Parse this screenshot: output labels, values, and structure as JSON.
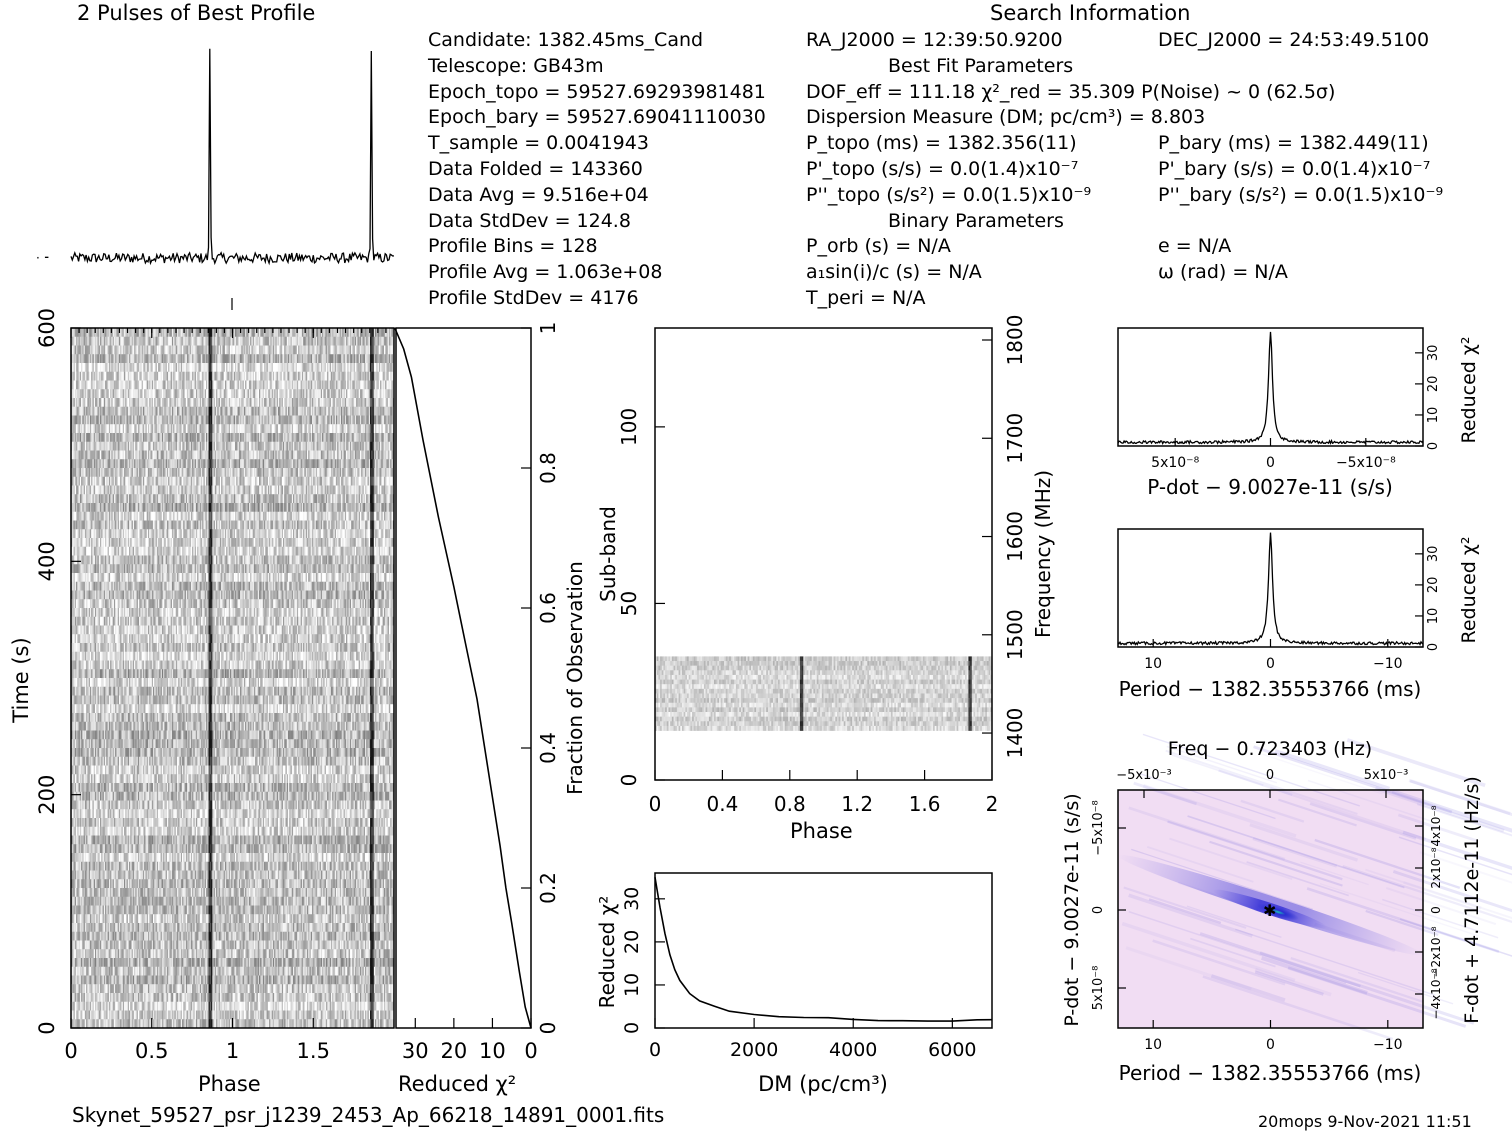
{
  "header": {
    "profile_title": "2 Pulses of Best Profile",
    "search_title": "Search Information",
    "best_fit_title": "Best Fit Parameters",
    "binary_title": "Binary Parameters",
    "filename": "Skynet_59527_psr_j1239_2453_Ap_66218_14891_0001.fits",
    "footer_right": "20mops  9-Nov-2021 11:51"
  },
  "info_col1": [
    "Candidate:  1382.45ms_Cand",
    "Telescope:  GB43m",
    "Epoch_topo = 59527.69293981481",
    "Epoch_bary = 59527.69041110030",
    "T_sample       =   0.0041943",
    "Data Folded    =   143360",
    "Data Avg       =   9.516e+04",
    "Data StdDev    =   124.8",
    "Profile Bins   =   128",
    "Profile Avg    =   1.063e+08",
    "Profile StdDev =   4176"
  ],
  "info_col2": [
    "RA_J2000 = 12:39:50.9200",
    "DOF_eff = 111.18  χ²_red = 35.309  P(Noise) ~ 0   (62.5σ)",
    "Dispersion Measure (DM; pc/cm³) = 8.803",
    "P_topo (ms) =  1382.356(11)",
    "P'_topo (s/s) = 0.0(1.4)x10⁻⁷",
    "P''_topo (s/s²) = 0.0(1.5)x10⁻⁹",
    "P_orb (s) = N/A",
    "a₁sin(i)/c (s) = N/A",
    "T_peri = N/A"
  ],
  "info_col3": [
    "DEC_J2000 = 24:53:49.5100",
    "P_bary (ms) =  1382.449(11)",
    "P'_bary (s/s) = 0.0(1.4)x10⁻⁷",
    "P''_bary (s/s²) = 0.0(1.5)x10⁻⁹",
    "e = N/A",
    "ω (rad) = N/A"
  ],
  "labels": {
    "phase": "Phase",
    "time": "Time (s)",
    "reduced_chi2": "Reduced χ²",
    "fraction_obs": "Fraction of Observation",
    "sub_band": "Sub-band",
    "frequency": "Frequency (MHz)",
    "dm": "DM (pc/cm³)",
    "pdot_x": "P-dot − 9.0027e-11 (s/s)",
    "period_x": "Period − 1382.35553766 (ms)",
    "freq_top": "Freq − 0.723403 (Hz)",
    "pdot_y": "P-dot − 9.0027e-11 (s/s)",
    "fdot_y": "F-dot + 4.7112e-11 (Hz/s)"
  },
  "colors": {
    "ink": "#000000",
    "grey_mid": "#8a8a8a",
    "pp_bg": "#f1ddf3",
    "pp_ridge": "#2a2fd0",
    "pp_peak": "#17c8b8"
  },
  "chart_data": [
    {
      "type": "line",
      "name": "profile",
      "title": "2 Pulses of Best Profile",
      "x_range": [
        0,
        2
      ],
      "pulse_phases": [
        0.86,
        1.86
      ],
      "pulse_peak": 1.0,
      "noise_level": 0.03
    },
    {
      "type": "heatmap",
      "name": "time-vs-phase",
      "xlabel": "Phase",
      "ylabel": "Time (s)",
      "xlim": [
        0,
        2
      ],
      "ylim": [
        0,
        600
      ],
      "x_ticks": [
        0,
        0.5,
        1,
        1.5
      ],
      "y_ticks": [
        0,
        200,
        400,
        600
      ],
      "pulse_phases": [
        0.86,
        1.86
      ]
    },
    {
      "type": "line",
      "name": "reduced-chi2-vs-time",
      "xlabel": "Reduced χ²",
      "ylabel": "Fraction of Observation",
      "x_ticks": [
        30,
        20,
        10,
        0
      ],
      "y_ticks": [
        0,
        0.2,
        0.4,
        0.6,
        0.8,
        1
      ],
      "xlim": [
        35,
        0
      ],
      "ylim": [
        0,
        1
      ],
      "points": [
        [
          0,
          0
        ],
        [
          1.5,
          0.03
        ],
        [
          3,
          0.08
        ],
        [
          5,
          0.15
        ],
        [
          6.5,
          0.2
        ],
        [
          8,
          0.26
        ],
        [
          10,
          0.33
        ],
        [
          12,
          0.4
        ],
        [
          14,
          0.47
        ],
        [
          17,
          0.55
        ],
        [
          20,
          0.63
        ],
        [
          24,
          0.73
        ],
        [
          28,
          0.84
        ],
        [
          31,
          0.93
        ],
        [
          33,
          0.97
        ],
        [
          35.3,
          1
        ]
      ]
    },
    {
      "type": "heatmap",
      "name": "subband-vs-phase",
      "xlabel": "Phase",
      "ylabel": "Sub-band",
      "y2label": "Frequency (MHz)",
      "xlim": [
        0,
        2
      ],
      "ylim": [
        0,
        128
      ],
      "x_ticks": [
        0,
        0.4,
        0.8,
        1.2,
        1.6,
        2
      ],
      "y_ticks": [
        0,
        50,
        100
      ],
      "y2_ticks": [
        1400,
        1500,
        1600,
        1700,
        1800
      ],
      "data_band": [
        14,
        35
      ],
      "pulse_phases": [
        0.87,
        1.87
      ]
    },
    {
      "type": "line",
      "name": "chi2-vs-dm",
      "xlabel": "DM (pc/cm³)",
      "ylabel": "Reduced χ²",
      "xlim": [
        0,
        6800
      ],
      "ylim": [
        0,
        36
      ],
      "x_ticks": [
        0,
        2000,
        4000,
        6000
      ],
      "y_ticks": [
        0,
        10,
        20,
        30
      ],
      "points": [
        [
          0,
          35
        ],
        [
          100,
          28
        ],
        [
          200,
          22
        ],
        [
          300,
          17
        ],
        [
          400,
          13.5
        ],
        [
          500,
          11
        ],
        [
          700,
          8
        ],
        [
          900,
          6.3
        ],
        [
          1200,
          5
        ],
        [
          1500,
          4
        ],
        [
          2000,
          3
        ],
        [
          2500,
          2.7
        ],
        [
          3000,
          2.6
        ],
        [
          3500,
          2.3
        ],
        [
          4000,
          2
        ],
        [
          4500,
          1.8
        ],
        [
          5000,
          1.7
        ],
        [
          5500,
          1.6
        ],
        [
          6000,
          1.6
        ],
        [
          6500,
          1.8
        ],
        [
          6800,
          2
        ]
      ]
    },
    {
      "type": "line",
      "name": "chi2-vs-pdot",
      "xlabel": "P-dot − 9.0027e-11 (s/s)",
      "ylabel": "Reduced χ²",
      "xlim": [
        8e-08,
        -8e-08
      ],
      "ylim": [
        0,
        38
      ],
      "x_ticks": [
        5e-08,
        0,
        -5e-08
      ],
      "x_tick_labels": [
        "5x10⁻⁸",
        "0",
        "−5x10⁻⁸"
      ],
      "y_ticks": [
        0,
        10,
        20,
        30
      ],
      "peak_x": 0,
      "peak_y": 35.3
    },
    {
      "type": "line",
      "name": "chi2-vs-period",
      "xlabel": "Period − 1382.35553766 (ms)",
      "ylabel": "Reduced χ²",
      "xlim": [
        13,
        -13
      ],
      "ylim": [
        0,
        38
      ],
      "x_ticks": [
        10,
        0,
        -10
      ],
      "y_ticks": [
        0,
        10,
        20,
        30
      ],
      "peak_x": 0,
      "peak_y": 35.3
    },
    {
      "type": "heatmap",
      "name": "p-pdot-plane",
      "title": "Freq − 0.723403 (Hz)",
      "xlabel": "Period − 1382.35553766 (ms)",
      "ylabel": "P-dot − 9.0027e-11 (s/s)",
      "y2label": "F-dot + 4.7112e-11 (Hz/s)",
      "xlim": [
        13,
        -13
      ],
      "ylim": [
        8e-08,
        -8e-08
      ],
      "x_ticks": [
        10,
        0,
        -10
      ],
      "top_tick_labels": [
        "−5x10⁻³",
        "0",
        "5x10⁻³"
      ],
      "left_tick_labels": [
        "−5x10⁻⁸",
        "0",
        "5x10⁻⁸"
      ],
      "right_tick_labels": [
        "4x10⁻⁸",
        "2x10⁻⁸",
        "0",
        "−2x10⁻⁸",
        "−4x10⁻⁸"
      ],
      "best_fit": [
        0,
        0
      ]
    }
  ]
}
